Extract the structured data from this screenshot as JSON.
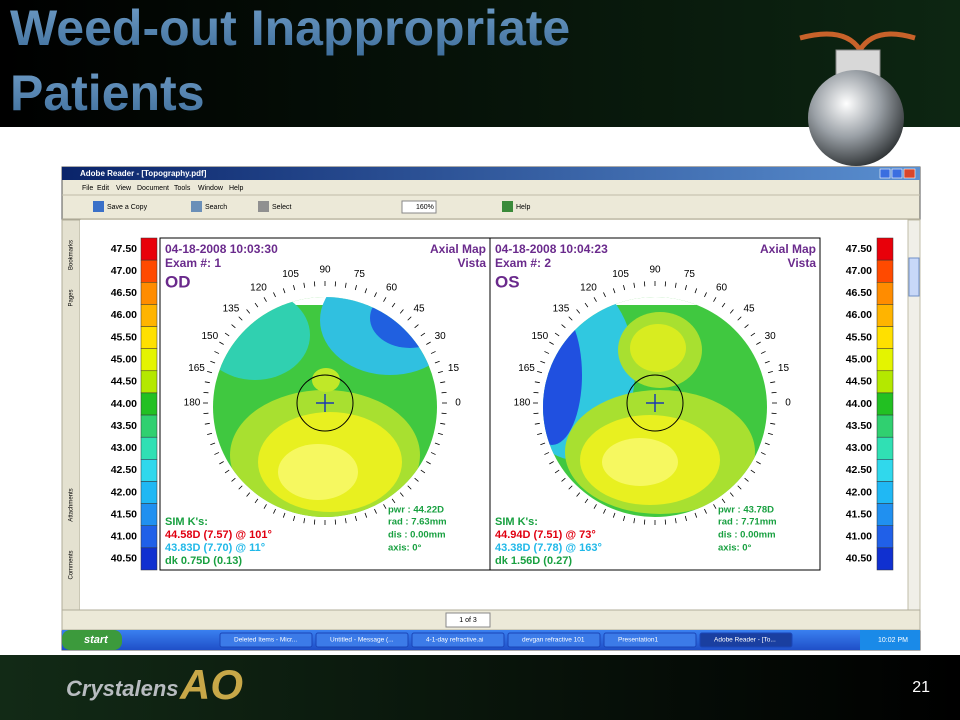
{
  "slide": {
    "title_lines": [
      "Weed-out Inappropriate",
      "Patients"
    ],
    "page_number": "21",
    "logo": {
      "brand": "Crystalens",
      "mark": "AO"
    }
  },
  "window": {
    "title": "Adobe Reader - [Topography.pdf]",
    "menu": [
      "File",
      "Edit",
      "View",
      "Document",
      "Tools",
      "Window",
      "Help"
    ],
    "toolbar": [
      "Save a Copy",
      "Search",
      "Select",
      "160%",
      "Help"
    ],
    "side_tabs": [
      "Bookmarks",
      "Pages",
      "Attachments",
      "Comments"
    ],
    "page_indicator": "1 of 3"
  },
  "document": {
    "scale": [
      {
        "label": "47.50",
        "color": "#e8000a"
      },
      {
        "label": "47.00",
        "color": "#ff4a00"
      },
      {
        "label": "46.50",
        "color": "#ff8c00"
      },
      {
        "label": "46.00",
        "color": "#ffb400"
      },
      {
        "label": "45.50",
        "color": "#ffe000"
      },
      {
        "label": "45.00",
        "color": "#e4f400"
      },
      {
        "label": "44.50",
        "color": "#b4e800"
      },
      {
        "label": "44.00",
        "color": "#22c022"
      },
      {
        "label": "43.50",
        "color": "#30d070"
      },
      {
        "label": "43.00",
        "color": "#30e0b4"
      },
      {
        "label": "42.50",
        "color": "#30d8ec"
      },
      {
        "label": "42.00",
        "color": "#20b8f4"
      },
      {
        "label": "41.50",
        "color": "#2090f0"
      },
      {
        "label": "41.00",
        "color": "#2060e8"
      },
      {
        "label": "40.50",
        "color": "#1030d0"
      }
    ],
    "angle_labels": [
      0,
      15,
      30,
      45,
      60,
      75,
      90,
      105,
      120,
      135,
      150,
      165,
      180
    ],
    "panels": [
      {
        "date": "04-18-2008 10:03:30",
        "exam": "Exam #: 1",
        "eye": "OD",
        "map": "Axial Map",
        "device": "Vista",
        "sim": "SIM K's:",
        "k1": "44.58D (7.57) @ 101°",
        "k2": "43.83D (7.70) @  11°",
        "dk": "dk  0.75D (0.13)",
        "pwr": "pwr : 44.22D",
        "rad": "rad : 7.63mm",
        "dis": "dis : 0.00mm",
        "axis": "axis:  0°"
      },
      {
        "date": "04-18-2008 10:04:23",
        "exam": "Exam #: 2",
        "eye": "OS",
        "map": "Axial Map",
        "device": "Vista",
        "sim": "SIM K's:",
        "k1": "44.94D (7.51) @  73°",
        "k2": "43.38D (7.78) @ 163°",
        "dk": "dk  1.56D (0.27)",
        "pwr": "pwr : 43.78D",
        "rad": "rad : 7.71mm",
        "dis": "dis : 0.00mm",
        "axis": "axis:  0°"
      }
    ]
  },
  "taskbar": {
    "start": "start",
    "items": [
      "Deleted Items - Micr...",
      "Untitled - Message (...",
      "4-1-day refractive.ai",
      "devgan refractive 101",
      "Presentation1",
      "Adobe Reader - [To..."
    ],
    "clock": "10:02 PM"
  }
}
